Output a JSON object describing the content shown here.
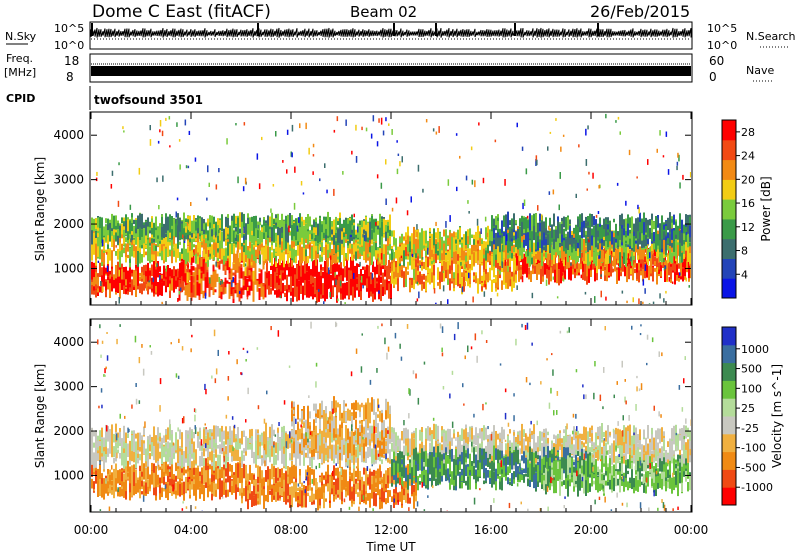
{
  "header": {
    "station": "Dome C East (fitACF)",
    "beam": "Beam 02",
    "date": "26/Feb/2015"
  },
  "panels": {
    "nsky": {
      "label": "N.Sky",
      "ticks_left": [
        "10^5",
        "10^0"
      ],
      "ticks_right": [
        "10^5",
        "10^0"
      ],
      "right_label": "N.Search"
    },
    "freq": {
      "label_top": "Freq.",
      "label_unit": "[MHz]",
      "ticks_left": [
        "18",
        "8"
      ],
      "ticks_right": [
        "60",
        "0"
      ],
      "right_label": "Nave"
    },
    "cpid": {
      "label": "CPID",
      "value": "twofsound 3501"
    }
  },
  "colors": {
    "power": [
      "#0a14e6",
      "#2344b8",
      "#3c6e6e",
      "#3a9a48",
      "#7acb3c",
      "#f2cc14",
      "#f28a14",
      "#f24a14",
      "#ff0000"
    ],
    "velocity": [
      "#2030c8",
      "#3a6ea0",
      "#3c8a50",
      "#6ac43c",
      "#b4dc9a",
      "#c8c8c0",
      "#f0b040",
      "#f08a14",
      "#f04a14",
      "#ff0000"
    ]
  },
  "chart_data": [
    {
      "type": "heatmap",
      "quantity": "Power",
      "xlabel": "",
      "ylabel": "Slant Range [km]",
      "x_ticks": [
        "00:00",
        "04:00",
        "08:00",
        "12:00",
        "16:00",
        "20:00",
        "00:00"
      ],
      "y_ticks": [
        1000,
        2000,
        3000,
        4000
      ],
      "ylim": [
        200,
        4500
      ],
      "xlim": [
        0,
        24
      ],
      "colorbar": {
        "label": "Power [dB]",
        "ticks": [
          4,
          8,
          12,
          16,
          20,
          24,
          28
        ],
        "range": [
          0,
          30
        ]
      },
      "bands": [
        {
          "t0": 0,
          "t1": 4,
          "r0": 500,
          "r1": 1000,
          "level": 28
        },
        {
          "t0": 3.5,
          "t1": 7,
          "r0": 400,
          "r1": 1300,
          "level": 26
        },
        {
          "t0": 7,
          "t1": 12,
          "r0": 400,
          "r1": 1100,
          "level": 30
        },
        {
          "t0": 12,
          "t1": 17,
          "r0": 600,
          "r1": 1500,
          "level": 22
        },
        {
          "t0": 17,
          "t1": 24,
          "r0": 800,
          "r1": 1400,
          "level": 26
        },
        {
          "t0": 0,
          "t1": 24,
          "r0": 1200,
          "r1": 1800,
          "level": 18
        },
        {
          "t0": 0,
          "t1": 12,
          "r0": 1700,
          "r1": 2100,
          "level": 13
        },
        {
          "t0": 16,
          "t1": 24,
          "r0": 1500,
          "r1": 2100,
          "level": 9
        }
      ]
    },
    {
      "type": "heatmap",
      "quantity": "Velocity",
      "xlabel": "Time UT",
      "ylabel": "Slant Range [km]",
      "x_ticks": [
        "00:00",
        "04:00",
        "08:00",
        "12:00",
        "16:00",
        "20:00",
        "00:00"
      ],
      "y_ticks": [
        1000,
        2000,
        3000,
        4000
      ],
      "ylim": [
        200,
        4500
      ],
      "xlim": [
        0,
        24
      ],
      "colorbar": {
        "label": "Velocity [m s^-1]",
        "ticks": [
          "1000",
          "500",
          "100",
          "25",
          "-25",
          "-100",
          "-500",
          "-1000"
        ]
      },
      "bands": [
        {
          "t0": 0,
          "t1": 6,
          "r0": 600,
          "r1": 1200,
          "level": 7
        },
        {
          "t0": 6,
          "t1": 13,
          "r0": 400,
          "r1": 1100,
          "level": 7
        },
        {
          "t0": 0,
          "t1": 24,
          "r0": 1300,
          "r1": 2000,
          "level": 5
        },
        {
          "t0": 12,
          "t1": 20,
          "r0": 800,
          "r1": 1500,
          "level": 2
        },
        {
          "t0": 18,
          "t1": 24,
          "r0": 700,
          "r1": 1300,
          "level": 3
        },
        {
          "t0": 8,
          "t1": 12,
          "r0": 1500,
          "r1": 2600,
          "level": 6
        }
      ]
    }
  ]
}
